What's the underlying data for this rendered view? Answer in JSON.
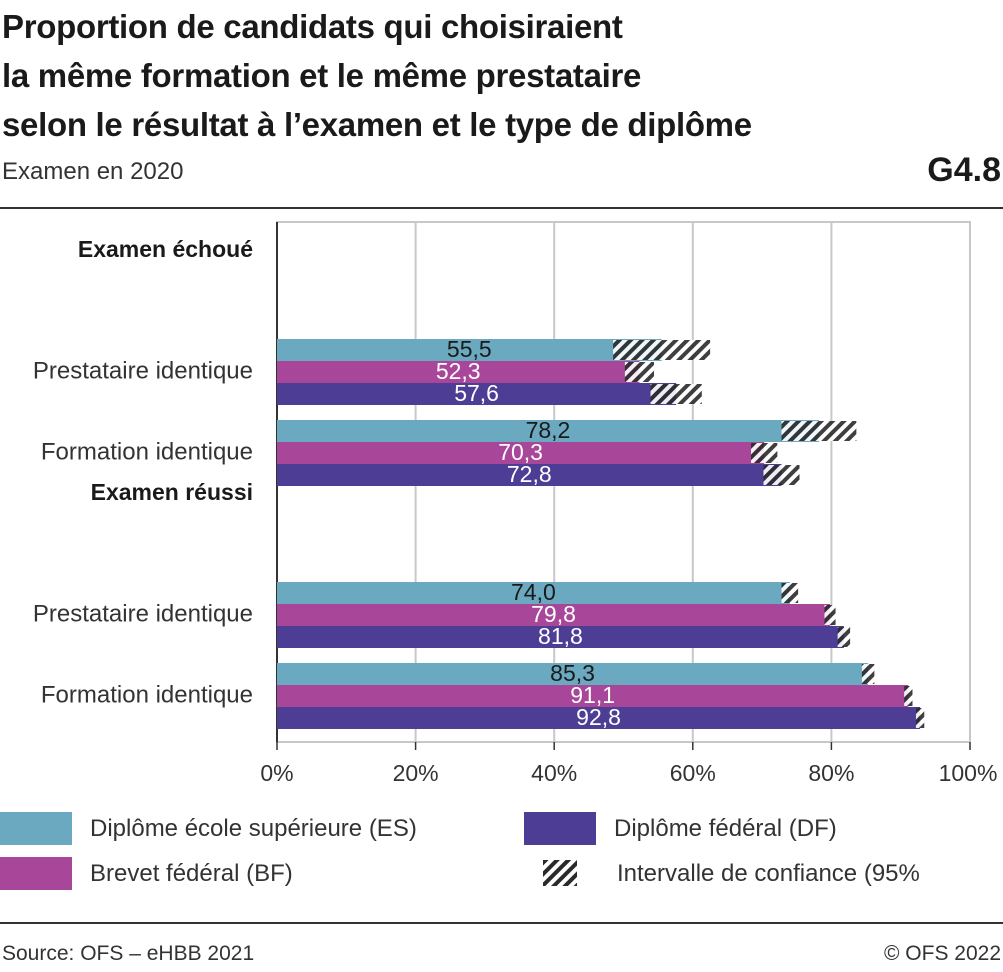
{
  "header": {
    "title_lines": [
      "Proportion de candidats qui choisiraient",
      "la même formation et le même prestataire",
      "selon le résultat à l’examen et le type de diplôme"
    ],
    "subtitle": "Examen en 2020",
    "code": "G4.8"
  },
  "footer": {
    "source": "Source: OFS – eHBB 2021",
    "copyright": "© OFS 2022"
  },
  "colors": {
    "es": "#6aa9c0",
    "bf": "#a8479a",
    "df": "#4d3d94",
    "grid": "#c8c8c8",
    "axis": "#333333"
  },
  "legend": {
    "es": "Diplôme école supérieure (ES)",
    "df": "Diplôme fédéral (DF)",
    "bf": "Brevet fédéral (BF)",
    "ci": "Intervalle de confiance (95%"
  },
  "chart_data": {
    "type": "bar",
    "orientation": "horizontal",
    "xlim": [
      0,
      100
    ],
    "x_ticks": [
      "0%",
      "20%",
      "40%",
      "60%",
      "80%",
      "100%"
    ],
    "grid": true,
    "legend_position": "bottom",
    "series": [
      {
        "key": "es",
        "name": "Diplôme école supérieure (ES)"
      },
      {
        "key": "bf",
        "name": "Brevet fédéral (BF)"
      },
      {
        "key": "df",
        "name": "Diplôme fédéral (DF)"
      }
    ],
    "groups": [
      {
        "name": "Examen échoué",
        "categories": [
          {
            "label": "Prestataire identique",
            "bars": [
              {
                "series": "es",
                "value": 55.5,
                "label": "55,5",
                "ci": [
                  48.5,
                  62.5
                ]
              },
              {
                "series": "bf",
                "value": 52.3,
                "label": "52,3",
                "ci": [
                  50.2,
                  54.4
                ]
              },
              {
                "series": "df",
                "value": 57.6,
                "label": "57,6",
                "ci": [
                  53.9,
                  61.3
                ]
              }
            ]
          },
          {
            "label": "Formation identique",
            "bars": [
              {
                "series": "es",
                "value": 78.2,
                "label": "78,2",
                "ci": [
                  72.8,
                  83.6
                ]
              },
              {
                "series": "bf",
                "value": 70.3,
                "label": "70,3",
                "ci": [
                  68.4,
                  72.2
                ]
              },
              {
                "series": "df",
                "value": 72.8,
                "label": "72,8",
                "ci": [
                  70.2,
                  75.4
                ]
              }
            ]
          }
        ]
      },
      {
        "name": "Examen réussi",
        "categories": [
          {
            "label": "Prestataire identique",
            "bars": [
              {
                "series": "es",
                "value": 74.0,
                "label": "74,0",
                "ci": [
                  72.8,
                  75.2
                ]
              },
              {
                "series": "bf",
                "value": 79.8,
                "label": "79,8",
                "ci": [
                  79.0,
                  80.6
                ]
              },
              {
                "series": "df",
                "value": 81.8,
                "label": "81,8",
                "ci": [
                  80.9,
                  82.7
                ]
              }
            ]
          },
          {
            "label": "Formation identique",
            "bars": [
              {
                "series": "es",
                "value": 85.3,
                "label": "85,3",
                "ci": [
                  84.4,
                  86.2
                ]
              },
              {
                "series": "bf",
                "value": 91.1,
                "label": "91,1",
                "ci": [
                  90.5,
                  91.7
                ]
              },
              {
                "series": "df",
                "value": 92.8,
                "label": "92,8",
                "ci": [
                  92.2,
                  93.4
                ]
              }
            ]
          }
        ]
      }
    ]
  }
}
